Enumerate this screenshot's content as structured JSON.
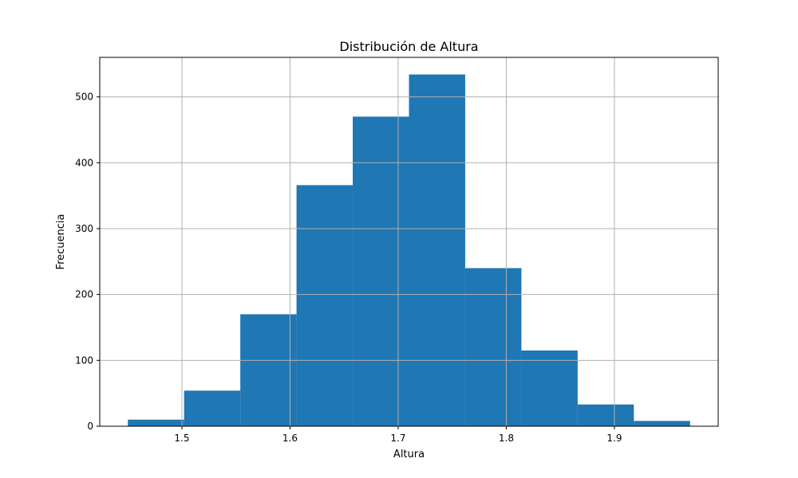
{
  "chart_data": {
    "type": "bar",
    "title": "Distribución de Altura",
    "xlabel": "Altura",
    "ylabel": "Frecuencia",
    "bin_edges": [
      1.45,
      1.502,
      1.554,
      1.606,
      1.658,
      1.71,
      1.762,
      1.814,
      1.866,
      1.918,
      1.97
    ],
    "values": [
      10,
      54,
      170,
      366,
      470,
      534,
      240,
      115,
      33,
      8
    ],
    "xlim": [
      1.424,
      1.996
    ],
    "ylim": [
      0,
      560
    ],
    "xticks": [
      1.5,
      1.6,
      1.7,
      1.8,
      1.9
    ],
    "xtick_labels": [
      "1.5",
      "1.6",
      "1.7",
      "1.8",
      "1.9"
    ],
    "yticks": [
      0,
      100,
      200,
      300,
      400,
      500
    ],
    "ytick_labels": [
      "0",
      "100",
      "200",
      "300",
      "400",
      "500"
    ],
    "grid": true,
    "bar_color": "#1f77b4"
  }
}
